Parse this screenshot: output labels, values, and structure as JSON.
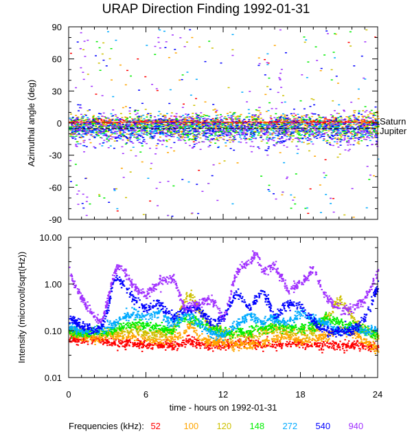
{
  "chart_data": [
    {
      "id": "azimuth",
      "type": "scatter",
      "title": "URAP Direction Finding  1992-01-31",
      "ylabel": "Azimuthal angle (deg)",
      "xlabel": "",
      "xlim": [
        0,
        24
      ],
      "ylim": [
        -90,
        90
      ],
      "yticks": [
        90,
        60,
        30,
        0,
        -30,
        -60,
        -90
      ],
      "yminor_step": 10,
      "xtick_labels_shown": false,
      "reference_lines": [
        {
          "label": "Saturn",
          "value": 1
        },
        {
          "label": "Jupiter",
          "value": -5
        }
      ],
      "description": "Dense band of points between about -20 and +15 deg for all frequencies across the whole day; scattered outliers reaching +/-90 deg, most frequent near 1 h, 6-7 h and 16-17 h (mostly 940 kHz)",
      "series": [
        {
          "name": "52",
          "center": 1,
          "spread": 3
        },
        {
          "name": "100",
          "center": -3,
          "spread": 10
        },
        {
          "name": "120",
          "center": -3,
          "spread": 10
        },
        {
          "name": "148",
          "center": -4,
          "spread": 10
        },
        {
          "name": "272",
          "center": -5,
          "spread": 10
        },
        {
          "name": "540",
          "center": -5,
          "spread": 12
        },
        {
          "name": "940",
          "center": -6,
          "spread": 14
        }
      ]
    },
    {
      "id": "intensity",
      "type": "scatter",
      "ylabel": "Intensity (microvolt/sqrt(Hz))",
      "xlabel": "time - hours on 1992-01-31",
      "xlim": [
        0,
        24
      ],
      "xticks": [
        0,
        6,
        12,
        18,
        24
      ],
      "yscale": "log",
      "ylim": [
        0.01,
        10
      ],
      "yticks": [
        "10.00",
        "1.00",
        "0.10",
        "0.01"
      ],
      "series": [
        {
          "name": "52",
          "x": [
            0,
            1,
            2,
            3,
            4,
            5,
            6,
            7,
            8,
            8.8,
            9.2,
            10,
            11,
            12,
            13,
            14,
            15,
            16,
            17,
            18,
            19,
            20,
            21,
            22,
            23,
            24
          ],
          "y": [
            0.07,
            0.065,
            0.065,
            0.06,
            0.055,
            0.055,
            0.05,
            0.05,
            0.05,
            0.05,
            0.07,
            0.05,
            0.05,
            0.05,
            0.055,
            0.06,
            0.05,
            0.05,
            0.055,
            0.055,
            0.05,
            0.05,
            0.05,
            0.05,
            0.05,
            0.045
          ]
        },
        {
          "name": "100",
          "x": [
            0,
            1,
            2,
            3,
            4,
            5,
            6,
            7,
            8,
            8.8,
            9.5,
            10,
            11,
            12,
            13,
            14,
            15,
            16,
            17,
            18,
            19,
            20,
            21,
            22,
            23,
            24
          ],
          "y": [
            0.09,
            0.08,
            0.07,
            0.08,
            0.08,
            0.08,
            0.07,
            0.065,
            0.07,
            0.08,
            0.15,
            0.07,
            0.06,
            0.06,
            0.05,
            0.05,
            0.06,
            0.07,
            0.08,
            0.06,
            0.07,
            0.08,
            0.12,
            0.09,
            0.06,
            0.04
          ]
        },
        {
          "name": "120",
          "x": [
            0,
            1,
            2,
            3,
            4,
            5,
            6,
            7,
            8,
            9,
            9.5,
            10,
            11,
            12,
            13,
            14,
            15,
            16,
            17,
            18,
            19,
            20,
            21,
            22,
            23,
            24
          ],
          "y": [
            0.1,
            0.09,
            0.09,
            0.1,
            0.1,
            0.12,
            0.09,
            0.09,
            0.1,
            0.5,
            0.6,
            0.3,
            0.12,
            0.1,
            0.08,
            0.08,
            0.1,
            0.12,
            0.1,
            0.1,
            0.1,
            0.2,
            0.5,
            0.2,
            0.1,
            0.08
          ]
        },
        {
          "name": "148",
          "x": [
            0,
            1,
            2,
            3,
            4,
            5,
            6,
            7,
            8,
            9,
            10,
            11,
            12,
            13,
            14,
            15,
            16,
            17,
            18,
            19,
            20,
            21,
            22,
            23,
            24
          ],
          "y": [
            0.1,
            0.09,
            0.1,
            0.1,
            0.12,
            0.15,
            0.13,
            0.12,
            0.1,
            0.2,
            0.16,
            0.12,
            0.09,
            0.1,
            0.1,
            0.12,
            0.13,
            0.12,
            0.12,
            0.13,
            0.2,
            0.15,
            0.13,
            0.1,
            0.08
          ]
        },
        {
          "name": "272",
          "x": [
            0,
            1,
            2,
            3,
            4,
            5,
            6,
            7,
            8,
            9,
            10,
            11,
            12,
            13,
            14,
            15,
            16,
            17,
            18,
            19,
            20,
            21,
            22,
            23,
            24
          ],
          "y": [
            0.12,
            0.1,
            0.1,
            0.12,
            0.18,
            0.25,
            0.2,
            0.25,
            0.15,
            0.22,
            0.15,
            0.09,
            0.08,
            0.14,
            0.22,
            0.15,
            0.2,
            0.15,
            0.25,
            0.18,
            0.15,
            0.1,
            0.12,
            0.1,
            0.12
          ]
        },
        {
          "name": "540",
          "x": [
            0,
            1,
            2,
            2.5,
            3,
            3.5,
            4,
            5,
            6,
            7,
            8,
            9,
            10,
            11,
            12,
            13,
            14,
            15,
            16,
            17,
            18,
            19,
            20,
            21,
            22,
            23,
            24
          ],
          "y": [
            0.2,
            0.12,
            0.1,
            0.13,
            0.3,
            1.5,
            1.2,
            0.5,
            0.3,
            0.4,
            0.2,
            0.3,
            0.3,
            0.15,
            0.2,
            0.7,
            0.3,
            0.8,
            0.2,
            0.4,
            0.35,
            0.15,
            0.1,
            0.1,
            0.1,
            0.2,
            1.0
          ]
        },
        {
          "name": "940",
          "x": [
            0,
            0.5,
            1,
            2,
            2.5,
            3,
            3.5,
            4,
            5,
            6,
            7,
            8,
            9,
            10,
            11,
            12,
            13,
            14,
            14.5,
            15,
            16,
            17,
            18,
            19,
            20,
            21,
            22,
            23,
            24
          ],
          "y": [
            2.0,
            0.8,
            0.5,
            0.2,
            0.15,
            0.5,
            2.0,
            2.5,
            0.9,
            0.6,
            1.2,
            1.4,
            0.3,
            0.4,
            0.5,
            0.2,
            2.0,
            3.0,
            5.0,
            2.0,
            2.5,
            0.7,
            1.2,
            2.0,
            0.5,
            0.3,
            0.3,
            0.5,
            2.0
          ]
        }
      ]
    }
  ],
  "title": "URAP Direction Finding  1992-01-31",
  "legend": {
    "label": "Frequencies (kHz):",
    "items": [
      {
        "name": "52",
        "color": "#ff0000"
      },
      {
        "name": "100",
        "color": "#ffa500"
      },
      {
        "name": "120",
        "color": "#cdc000"
      },
      {
        "name": "148",
        "color": "#00ee00"
      },
      {
        "name": "272",
        "color": "#00aaff"
      },
      {
        "name": "540",
        "color": "#0000ff"
      },
      {
        "name": "940",
        "color": "#a030ff"
      }
    ]
  }
}
